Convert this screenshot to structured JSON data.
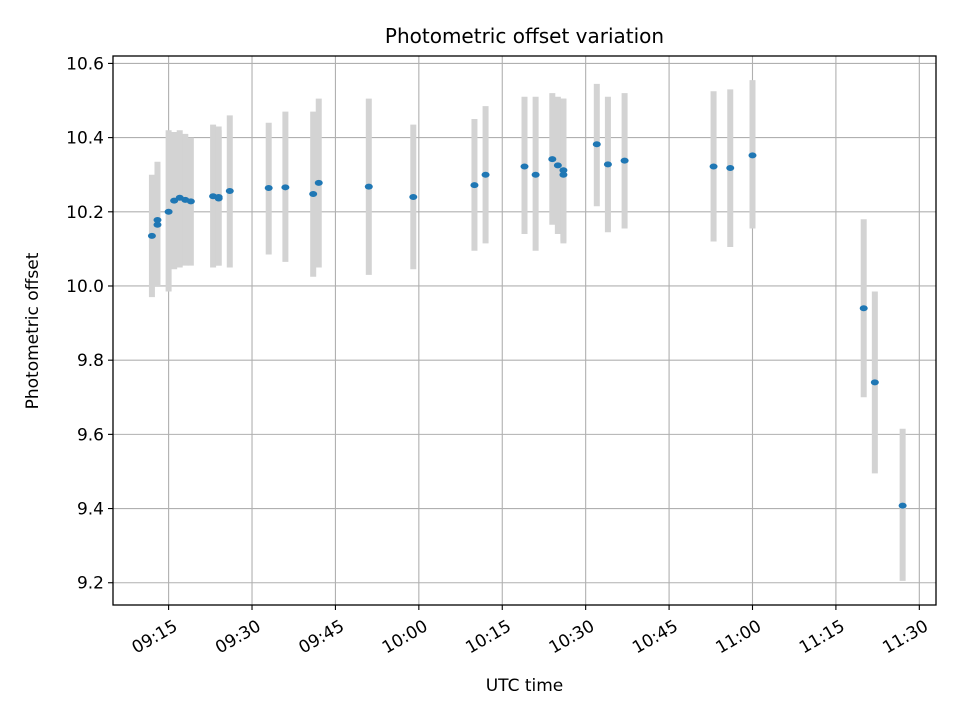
{
  "chart_data": {
    "type": "scatter",
    "title": "Photometric offset variation",
    "xlabel": "UTC time",
    "ylabel": "Photometric offset",
    "x_ticks": [
      "09:15",
      "09:30",
      "09:45",
      "10:00",
      "10:15",
      "10:30",
      "10:45",
      "11:00",
      "11:15",
      "11:30"
    ],
    "y_ticks": [
      "9.2",
      "9.4",
      "9.6",
      "9.8",
      "10.0",
      "10.2",
      "10.4",
      "10.6"
    ],
    "xlim": [
      "09:05",
      "11:33"
    ],
    "ylim": [
      9.14,
      10.62
    ],
    "grid": true,
    "colors": {
      "points": "#1f77b4",
      "errorbars": "#d3d3d3",
      "grid": "#b0b0b0"
    },
    "points": [
      {
        "t": "09:12",
        "y": 10.135,
        "lo": 9.97,
        "hi": 10.3
      },
      {
        "t": "09:13",
        "y": 10.165,
        "lo": 10.0,
        "hi": 10.325
      },
      {
        "t": "09:13",
        "y": 10.178,
        "lo": 10.02,
        "hi": 10.335
      },
      {
        "t": "09:15",
        "y": 10.2,
        "lo": 9.985,
        "hi": 10.42
      },
      {
        "t": "09:16",
        "y": 10.23,
        "lo": 10.045,
        "hi": 10.415
      },
      {
        "t": "09:17",
        "y": 10.238,
        "lo": 10.05,
        "hi": 10.42
      },
      {
        "t": "09:18",
        "y": 10.232,
        "lo": 10.055,
        "hi": 10.41
      },
      {
        "t": "09:19",
        "y": 10.228,
        "lo": 10.055,
        "hi": 10.4
      },
      {
        "t": "09:23",
        "y": 10.242,
        "lo": 10.05,
        "hi": 10.435
      },
      {
        "t": "09:24",
        "y": 10.24,
        "lo": 10.055,
        "hi": 10.43
      },
      {
        "t": "09:24",
        "y": 10.236,
        "lo": 10.055,
        "hi": 10.42
      },
      {
        "t": "09:26",
        "y": 10.256,
        "lo": 10.05,
        "hi": 10.46
      },
      {
        "t": "09:33",
        "y": 10.264,
        "lo": 10.085,
        "hi": 10.44
      },
      {
        "t": "09:36",
        "y": 10.266,
        "lo": 10.065,
        "hi": 10.47
      },
      {
        "t": "09:41",
        "y": 10.248,
        "lo": 10.025,
        "hi": 10.47
      },
      {
        "t": "09:42",
        "y": 10.278,
        "lo": 10.05,
        "hi": 10.505
      },
      {
        "t": "09:51",
        "y": 10.268,
        "lo": 10.03,
        "hi": 10.505
      },
      {
        "t": "09:59",
        "y": 10.24,
        "lo": 10.045,
        "hi": 10.435
      },
      {
        "t": "10:10",
        "y": 10.272,
        "lo": 10.095,
        "hi": 10.45
      },
      {
        "t": "10:12",
        "y": 10.3,
        "lo": 10.115,
        "hi": 10.485
      },
      {
        "t": "10:19",
        "y": 10.322,
        "lo": 10.14,
        "hi": 10.51
      },
      {
        "t": "10:21",
        "y": 10.3,
        "lo": 10.095,
        "hi": 10.51
      },
      {
        "t": "10:24",
        "y": 10.342,
        "lo": 10.165,
        "hi": 10.52
      },
      {
        "t": "10:25",
        "y": 10.325,
        "lo": 10.14,
        "hi": 10.51
      },
      {
        "t": "10:26",
        "y": 10.3,
        "lo": 10.115,
        "hi": 10.505
      },
      {
        "t": "10:26",
        "y": 10.312,
        "lo": 10.12,
        "hi": 10.505
      },
      {
        "t": "10:32",
        "y": 10.382,
        "lo": 10.215,
        "hi": 10.545
      },
      {
        "t": "10:34",
        "y": 10.328,
        "lo": 10.145,
        "hi": 10.51
      },
      {
        "t": "10:37",
        "y": 10.338,
        "lo": 10.155,
        "hi": 10.52
      },
      {
        "t": "10:53",
        "y": 10.322,
        "lo": 10.12,
        "hi": 10.525
      },
      {
        "t": "10:56",
        "y": 10.318,
        "lo": 10.105,
        "hi": 10.53
      },
      {
        "t": "11:00",
        "y": 10.352,
        "lo": 10.155,
        "hi": 10.555
      },
      {
        "t": "11:20",
        "y": 9.94,
        "lo": 9.7,
        "hi": 10.18
      },
      {
        "t": "11:22",
        "y": 9.74,
        "lo": 9.495,
        "hi": 9.985
      },
      {
        "t": "11:27",
        "y": 9.408,
        "lo": 9.205,
        "hi": 9.615
      }
    ]
  }
}
